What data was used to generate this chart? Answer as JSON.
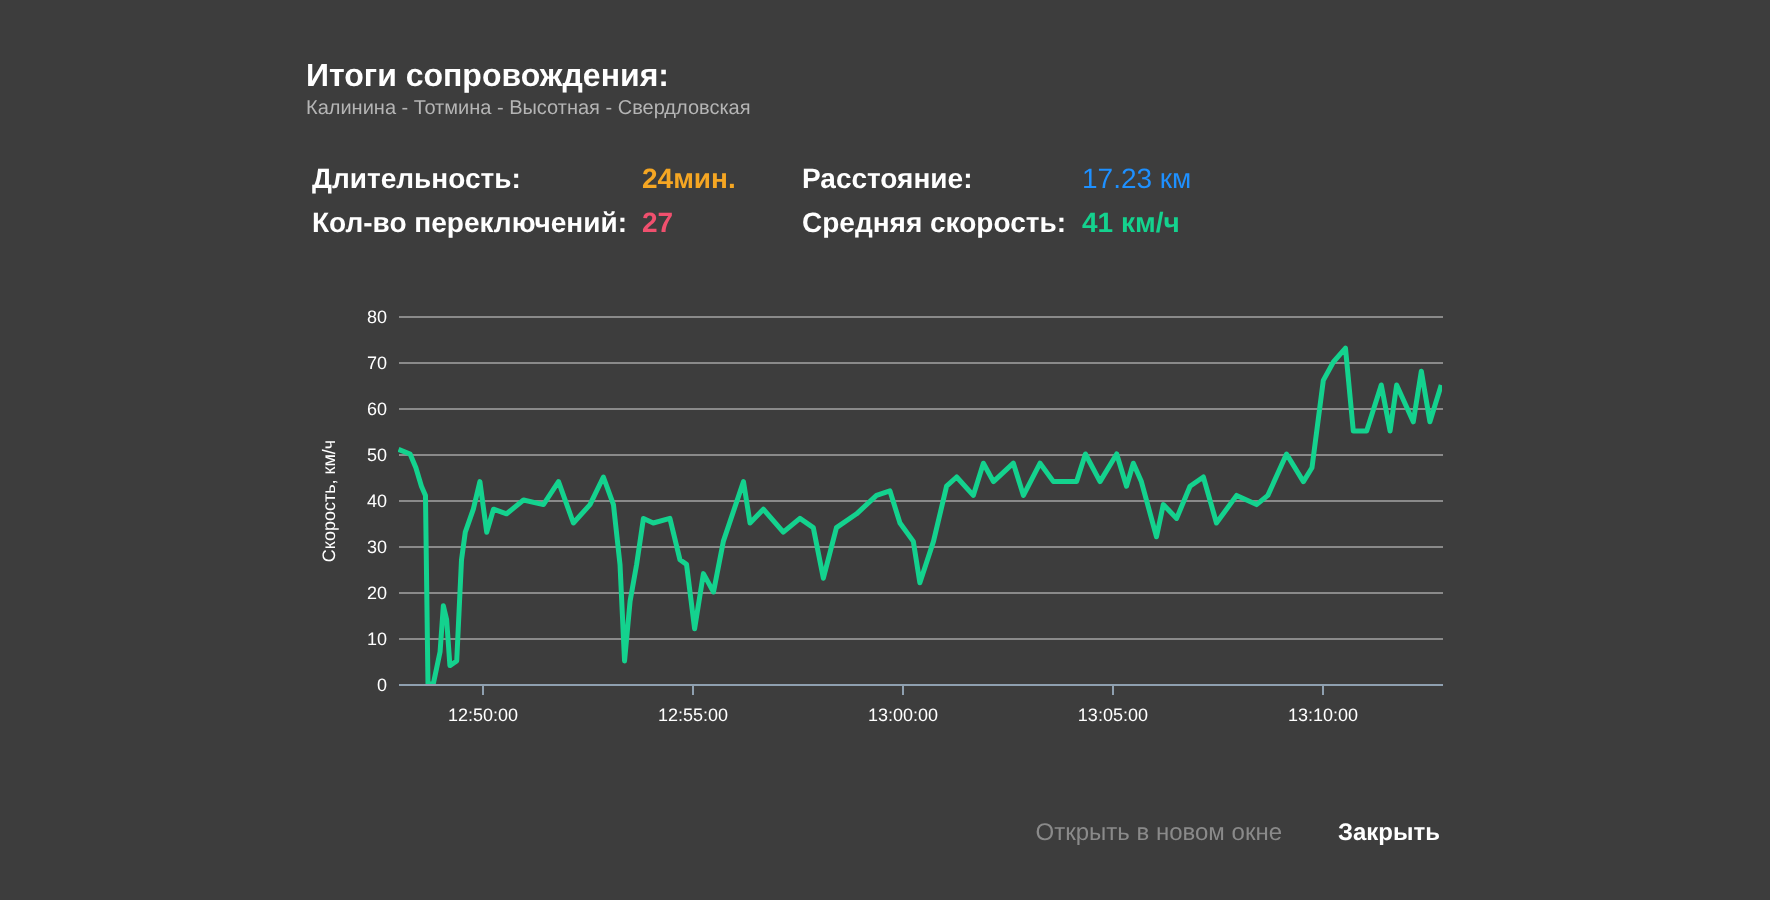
{
  "chart_data": {
    "type": "line",
    "title": "Итоги сопровождения:",
    "subtitle": "Калинина - Тотмина - Высотная - Свердловская",
    "ylabel": "Скорость, км/ч",
    "annotations": [
      "Длительность:",
      "24мин.",
      "Кол-во переключений:",
      "27",
      "Расстояние:",
      "17.23 км",
      "Средняя скорость:",
      "41 км/ч",
      "Открыть в новом окне",
      "Закрыть"
    ],
    "x": [
      12.8002,
      12.8048,
      12.8071,
      12.8093,
      12.8109,
      12.8119,
      12.814,
      12.8167,
      12.818,
      12.8193,
      12.8206,
      12.8233,
      12.8252,
      12.8267,
      12.8299,
      12.8325,
      12.8352,
      12.8379,
      12.8431,
      12.8498,
      12.8577,
      12.8637,
      12.8696,
      12.8762,
      12.8815,
      12.8855,
      12.8881,
      12.8899,
      12.8921,
      12.8947,
      12.8974,
      12.9013,
      12.9079,
      12.9119,
      12.9145,
      12.9177,
      12.9212,
      12.9252,
      12.9291,
      12.9371,
      12.9397,
      12.945,
      12.9529,
      12.9595,
      12.9648,
      12.9688,
      12.974,
      12.982,
      12.9899,
      12.9952,
      12.9992,
      13.0045,
      13.0071,
      13.0125,
      13.0177,
      13.0217,
      13.0283,
      13.0323,
      13.0363,
      13.0442,
      13.0482,
      13.0548,
      13.0601,
      13.0693,
      13.0728,
      13.0786,
      13.0852,
      13.0891,
      13.0918,
      13.095,
      13.101,
      13.1037,
      13.109,
      13.1143,
      13.1196,
      13.1248,
      13.1328,
      13.1407,
      13.1452,
      13.1526,
      13.1593,
      13.1627,
      13.1672,
      13.1712,
      13.176,
      13.1791,
      13.1844,
      13.1902,
      13.1937,
      13.1963,
      13.2029,
      13.2061,
      13.2095,
      13.214
    ],
    "series": [
      {
        "color": "#14d28e",
        "values": [
          51,
          50,
          47,
          43,
          41,
          0,
          0,
          7,
          17,
          14,
          4,
          5,
          27,
          33,
          38,
          44,
          33,
          38,
          37,
          40,
          39,
          44,
          35,
          39,
          45,
          39,
          26,
          5,
          18,
          26,
          36,
          35,
          36,
          27,
          26,
          12,
          24,
          20,
          31,
          44,
          35,
          38,
          33,
          36,
          34,
          23,
          34,
          37,
          41,
          42,
          35,
          31,
          22,
          31,
          43,
          45,
          41,
          48,
          44,
          48,
          41,
          48,
          44,
          44,
          50,
          44,
          50,
          43,
          48,
          44,
          32,
          39,
          36,
          43,
          45,
          35,
          41,
          39,
          41,
          50,
          44,
          47,
          66,
          70,
          73,
          55,
          55,
          65,
          55,
          65,
          57,
          68,
          57,
          65
        ]
      }
    ],
    "xlim": [
      12.8,
      13.2143
    ],
    "xticks": [
      {
        "value": 12.8333,
        "label": "12:50:00"
      },
      {
        "value": 12.9167,
        "label": "12:55:00"
      },
      {
        "value": 13.0,
        "label": "13:00:00"
      },
      {
        "value": 13.0833,
        "label": "13:05:00"
      },
      {
        "value": 13.1667,
        "label": "13:10:00"
      }
    ],
    "ylim": [
      0,
      80
    ],
    "yticks": [
      0,
      10,
      20,
      30,
      40,
      50,
      60,
      70,
      80
    ],
    "grid": "y",
    "line_style": "solid"
  }
}
